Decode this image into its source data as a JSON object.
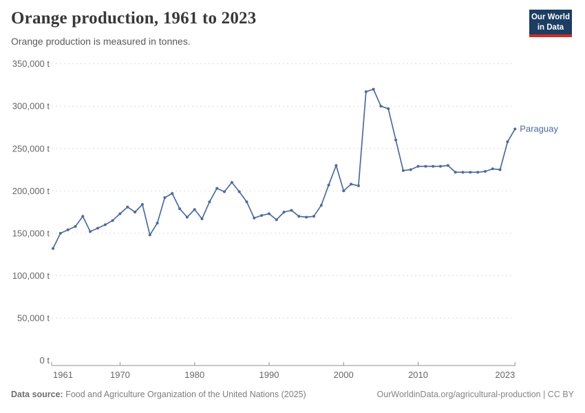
{
  "header": {
    "title": "Orange production, 1961 to 2023",
    "subtitle": "Orange production is measured in tonnes."
  },
  "logo": {
    "line1": "Our World",
    "line2": "in Data"
  },
  "footer": {
    "source_label": "Data source:",
    "source_text": " Food and Agriculture Organization of the United Nations (2025)",
    "credit": "OurWorldinData.org/agricultural-production | CC BY"
  },
  "colors": {
    "line": "#4C6A9C",
    "grid": "#dadada",
    "axis": "#8f8f8f",
    "tick_text": "#666666",
    "logo_bg": "#1d3d63",
    "logo_accent": "#d42b21"
  },
  "chart_data": {
    "type": "line",
    "title": "Orange production, 1961 to 2023",
    "subtitle": "Orange production is measured in tonnes.",
    "unit": "t",
    "grid": "horizontal-dashed",
    "legend_position": "end-of-line-label",
    "xlim": [
      1961,
      2023
    ],
    "ylim": [
      0,
      350000
    ],
    "xticks": [
      1961,
      1970,
      1980,
      1990,
      2000,
      2010,
      2023
    ],
    "yticks": [
      0,
      50000,
      100000,
      150000,
      200000,
      250000,
      300000,
      350000
    ],
    "x": [
      1961,
      1962,
      1963,
      1964,
      1965,
      1966,
      1967,
      1968,
      1969,
      1970,
      1971,
      1972,
      1973,
      1974,
      1975,
      1976,
      1977,
      1978,
      1979,
      1980,
      1981,
      1982,
      1983,
      1984,
      1985,
      1986,
      1987,
      1988,
      1989,
      1990,
      1991,
      1992,
      1993,
      1994,
      1995,
      1996,
      1997,
      1998,
      1999,
      2000,
      2001,
      2002,
      2003,
      2004,
      2005,
      2006,
      2007,
      2008,
      2009,
      2010,
      2011,
      2012,
      2013,
      2014,
      2015,
      2016,
      2017,
      2018,
      2019,
      2020,
      2021,
      2022,
      2023
    ],
    "series": [
      {
        "name": "Paraguay",
        "values": [
          132000,
          150000,
          154000,
          158000,
          170000,
          152000,
          156000,
          160000,
          165000,
          173000,
          181000,
          175000,
          184000,
          148000,
          162000,
          192000,
          197000,
          179000,
          169000,
          178000,
          167000,
          187000,
          203000,
          199000,
          210000,
          199000,
          187000,
          168000,
          171000,
          173000,
          166000,
          175000,
          177000,
          170000,
          169000,
          170000,
          183000,
          207000,
          230000,
          200000,
          208000,
          206000,
          317000,
          320000,
          300000,
          297000,
          260000,
          224000,
          225000,
          229000,
          229000,
          229000,
          229000,
          230000,
          222000,
          222000,
          222000,
          222000,
          223000,
          226000,
          225000,
          258000,
          273000
        ]
      }
    ]
  }
}
